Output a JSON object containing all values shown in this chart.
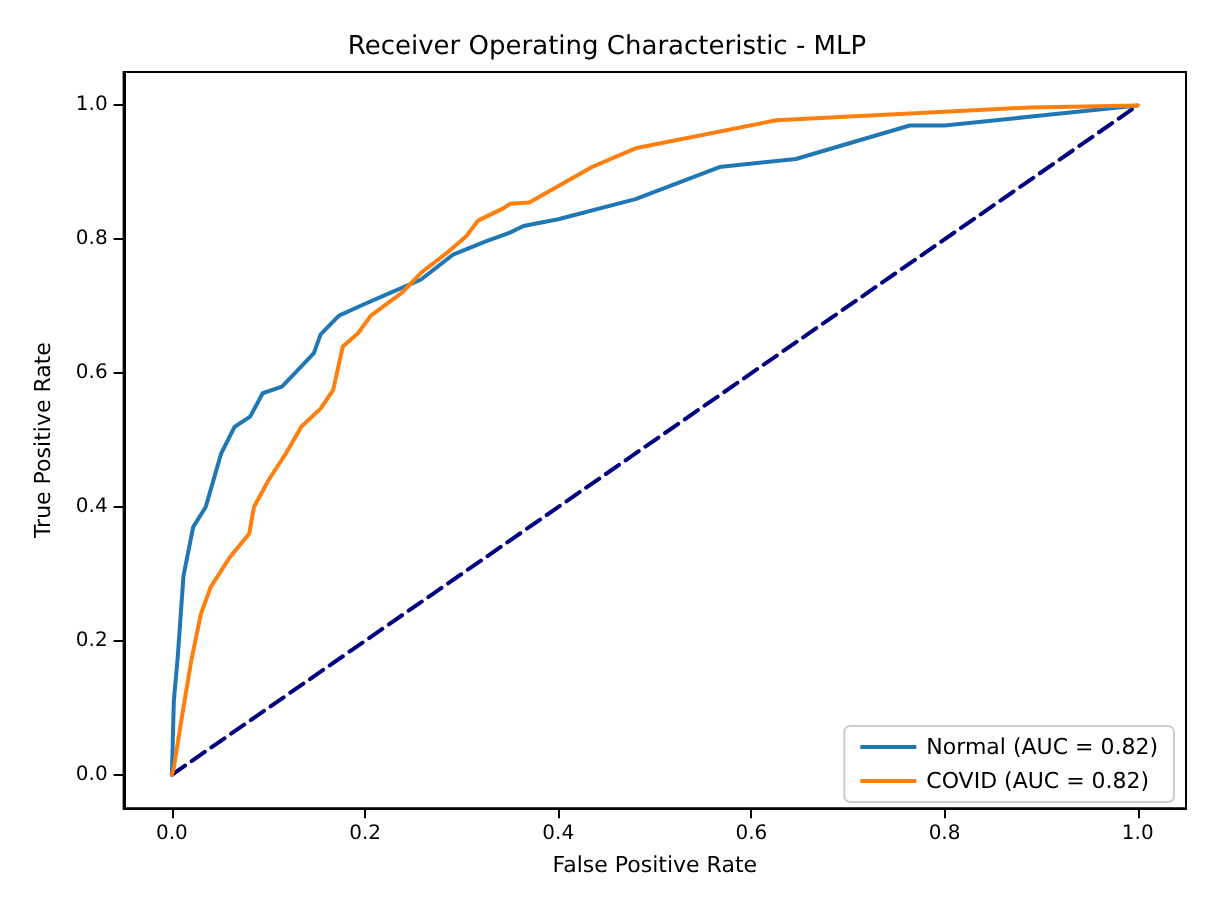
{
  "chart_data": {
    "type": "line",
    "title": "Receiver Operating Characteristic - MLP",
    "xlabel": "False Positive Rate",
    "ylabel": "True Positive Rate",
    "xlim": [
      -0.05,
      1.05
    ],
    "ylim": [
      -0.05,
      1.05
    ],
    "xticks": [
      {
        "value": 0,
        "label": "0.0"
      },
      {
        "value": 0.2,
        "label": "0.2"
      },
      {
        "value": 0.4,
        "label": "0.4"
      },
      {
        "value": 0.6,
        "label": "0.6"
      },
      {
        "value": 0.8,
        "label": "0.8"
      },
      {
        "value": 1,
        "label": "1.0"
      }
    ],
    "yticks": [
      {
        "value": 0,
        "label": "0.0"
      },
      {
        "value": 0.2,
        "label": "0.2"
      },
      {
        "value": 0.4,
        "label": "0.4"
      },
      {
        "value": 0.6,
        "label": "0.6"
      },
      {
        "value": 0.8,
        "label": "0.8"
      },
      {
        "value": 1,
        "label": "1.0"
      }
    ],
    "grid": false,
    "legend": "bottom right",
    "marker": "none",
    "series": [
      {
        "name": "Normal (AUC = 0.82)",
        "color": "#1f77b4",
        "x": [
          0,
          0.002,
          0.006,
          0.012,
          0.022,
          0.035,
          0.042,
          0.051,
          0.065,
          0.081,
          0.094,
          0.114,
          0.134,
          0.147,
          0.154,
          0.173,
          0.199,
          0.226,
          0.258,
          0.291,
          0.325,
          0.35,
          0.364,
          0.4,
          0.48,
          0.567,
          0.646,
          0.764,
          0.8,
          0.9,
          1.0
        ],
        "values": [
          0,
          0.11,
          0.175,
          0.297,
          0.37,
          0.4,
          0.435,
          0.48,
          0.52,
          0.535,
          0.57,
          0.58,
          0.61,
          0.63,
          0.658,
          0.686,
          0.703,
          0.72,
          0.74,
          0.777,
          0.797,
          0.81,
          0.82,
          0.83,
          0.86,
          0.908,
          0.92,
          0.97,
          0.97,
          0.985,
          1.0
        ]
      },
      {
        "name": "COVID (AUC = 0.82)",
        "color": "#ff7f0e",
        "x": [
          0,
          0.002,
          0.01,
          0.02,
          0.03,
          0.04,
          0.06,
          0.08,
          0.085,
          0.1,
          0.118,
          0.134,
          0.154,
          0.167,
          0.177,
          0.193,
          0.206,
          0.238,
          0.258,
          0.285,
          0.305,
          0.317,
          0.344,
          0.35,
          0.37,
          0.435,
          0.48,
          0.626,
          0.888,
          1.0
        ],
        "values": [
          0,
          0.01,
          0.083,
          0.17,
          0.24,
          0.28,
          0.325,
          0.36,
          0.4,
          0.44,
          0.48,
          0.52,
          0.547,
          0.575,
          0.64,
          0.66,
          0.686,
          0.72,
          0.75,
          0.78,
          0.805,
          0.828,
          0.847,
          0.853,
          0.855,
          0.908,
          0.936,
          0.978,
          0.997,
          1.0
        ]
      },
      {
        "color": "#000080",
        "line_style": "dashed",
        "x": [
          0,
          1
        ],
        "values": [
          0,
          1
        ]
      }
    ]
  }
}
